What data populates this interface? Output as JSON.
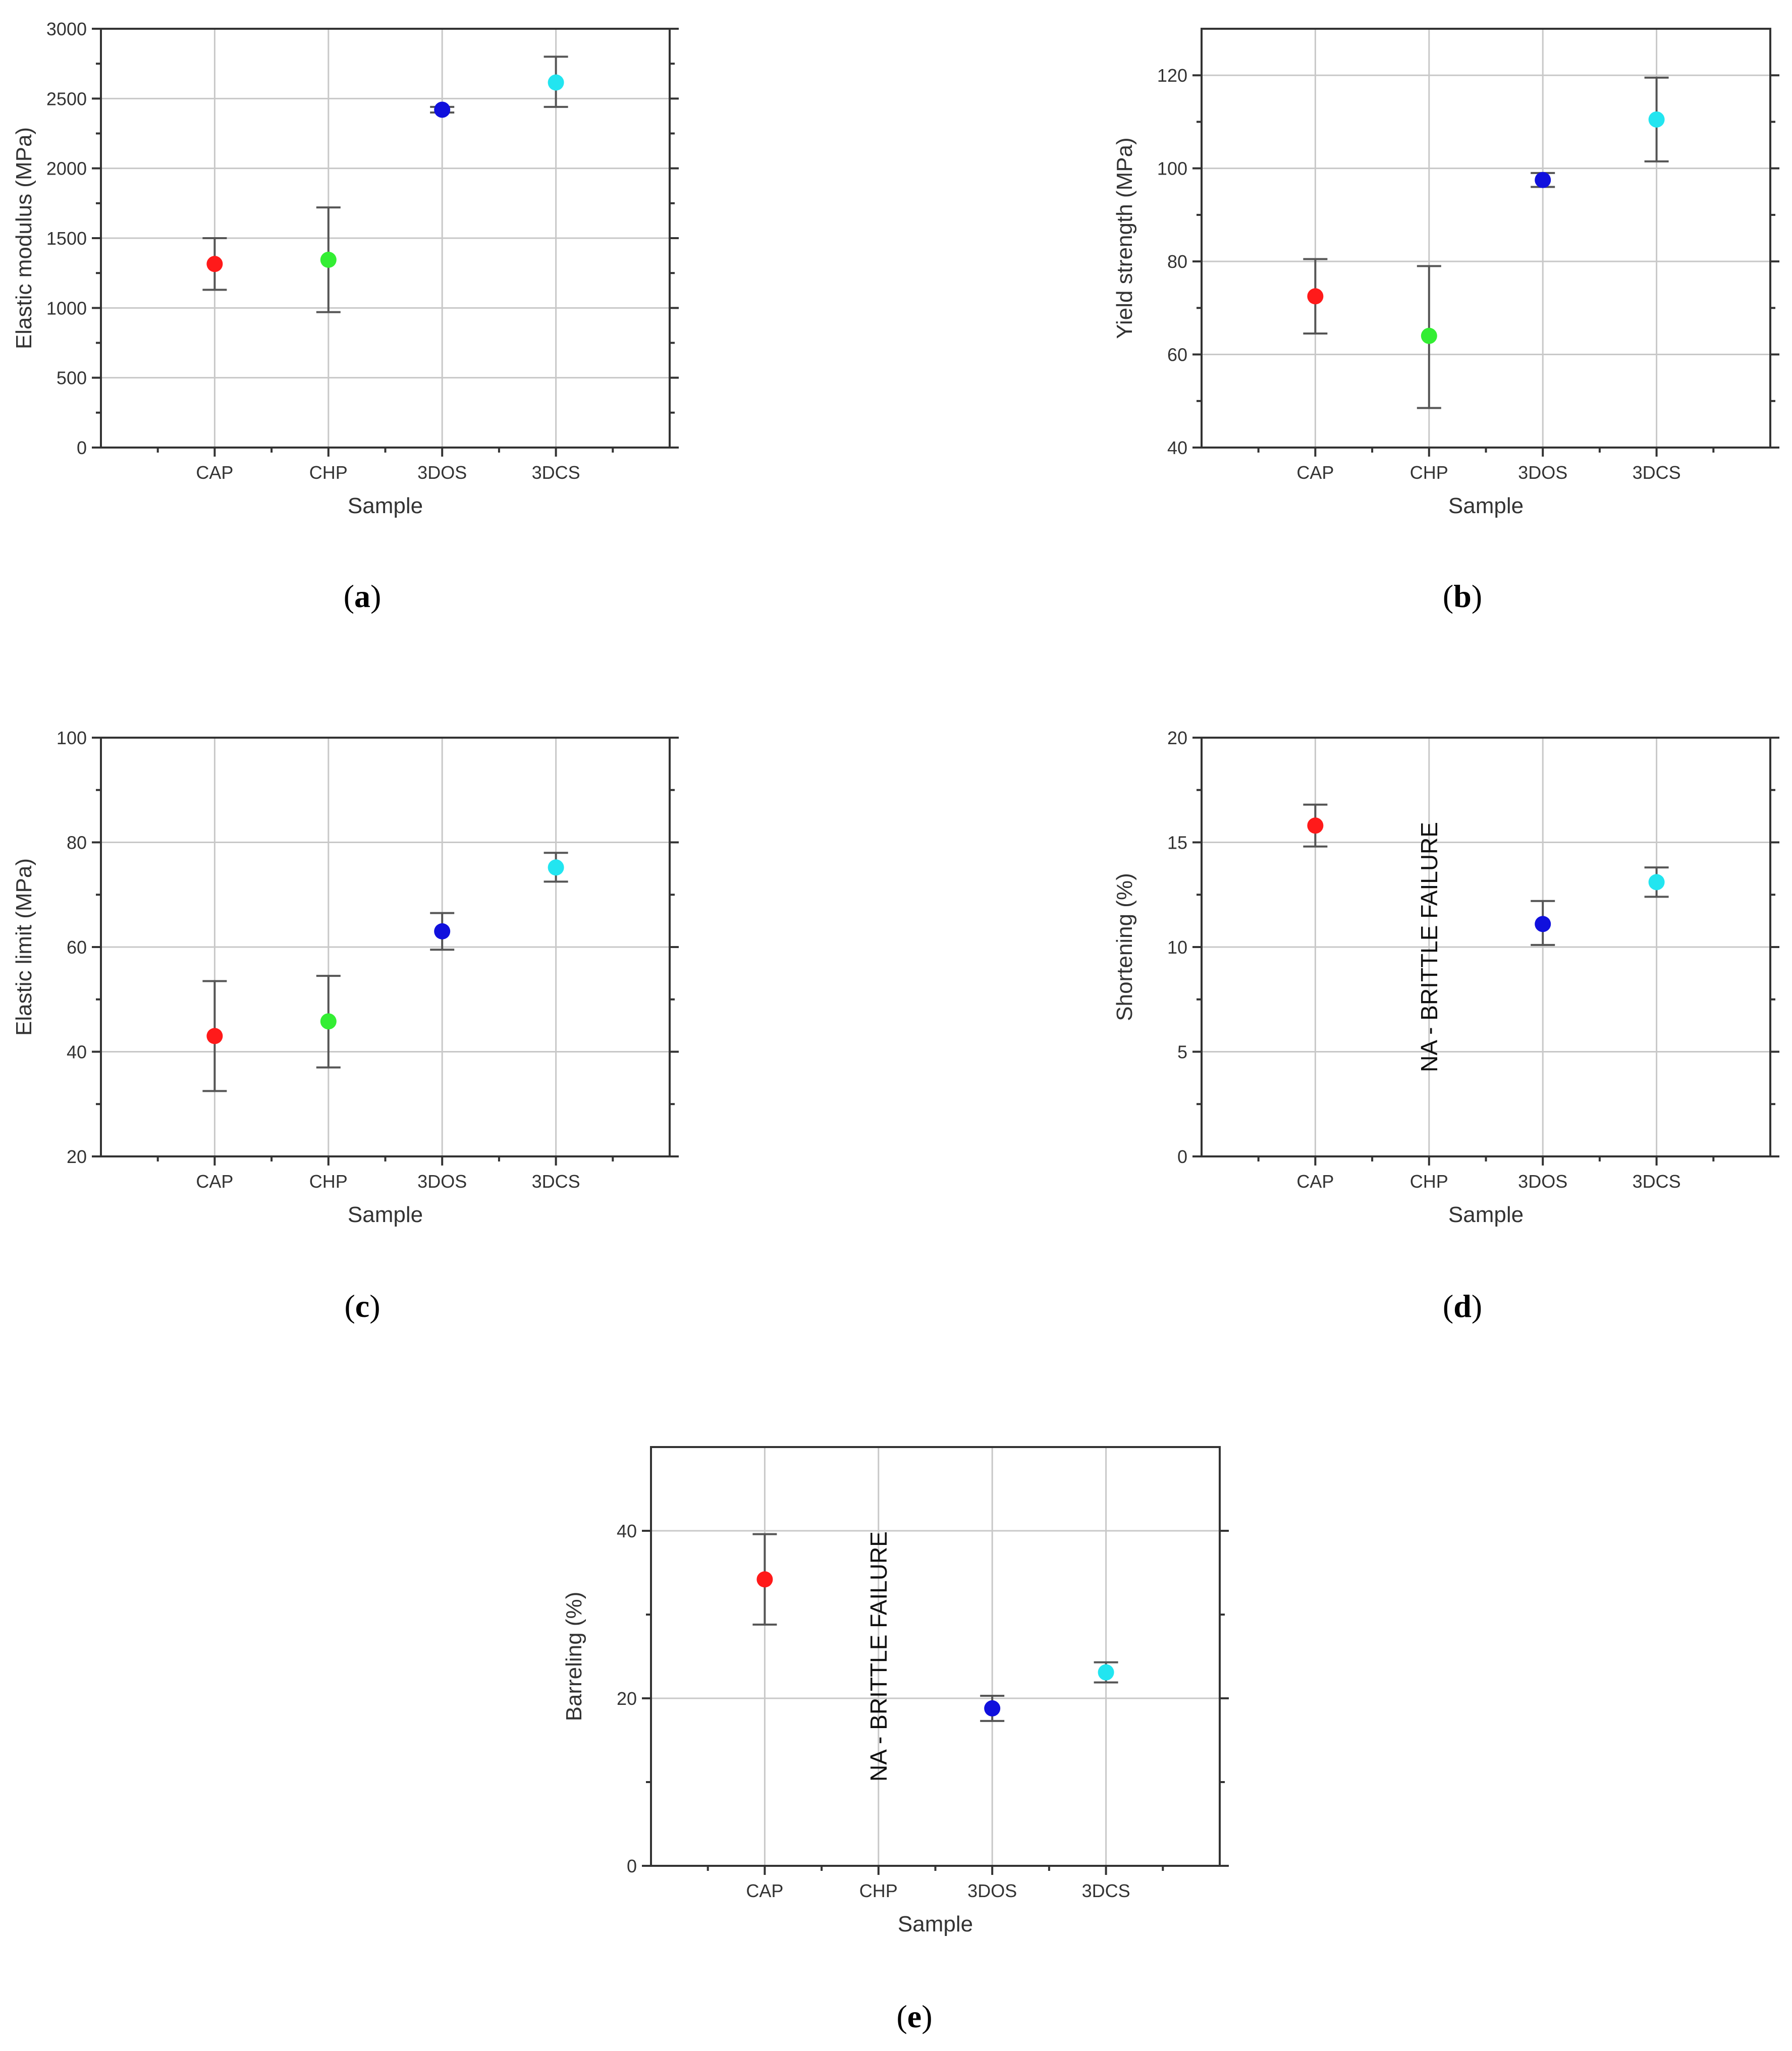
{
  "chart_data": [
    {
      "panel": "a",
      "type": "scatter",
      "xlabel": "Sample",
      "ylabel": "Elastic modulus (MPa)",
      "categories": [
        "CAP",
        "CHP",
        "3DOS",
        "3DCS"
      ],
      "values": [
        1315,
        1345,
        2420,
        2615
      ],
      "error_low": [
        1130,
        970,
        2400,
        2440
      ],
      "error_high": [
        1500,
        1720,
        2440,
        2800
      ],
      "colors": [
        "#ff1a1a",
        "#33ee33",
        "#1010dd",
        "#22e5f0"
      ],
      "ylim": [
        0,
        3000
      ],
      "yticks": [
        "0",
        "500",
        "1000",
        "1500",
        "2000",
        "2500",
        "3000"
      ],
      "grid": true,
      "annotation": ""
    },
    {
      "panel": "b",
      "type": "scatter",
      "xlabel": "Sample",
      "ylabel": "Yield strength (MPa)",
      "categories": [
        "CAP",
        "CHP",
        "3DOS",
        "3DCS"
      ],
      "values": [
        72.5,
        64,
        97.5,
        110.5
      ],
      "error_low": [
        64.5,
        48.5,
        96,
        101.5
      ],
      "error_high": [
        80.5,
        79,
        99,
        119.5
      ],
      "colors": [
        "#ff1a1a",
        "#33ee33",
        "#1010dd",
        "#22e5f0"
      ],
      "ylim": [
        40,
        130
      ],
      "yticks": [
        "40",
        "60",
        "80",
        "100",
        "120"
      ],
      "grid": true,
      "annotation": ""
    },
    {
      "panel": "c",
      "type": "scatter",
      "xlabel": "Sample",
      "ylabel": "Elastic limit (MPa)",
      "categories": [
        "CAP",
        "CHP",
        "3DOS",
        "3DCS"
      ],
      "values": [
        43,
        45.8,
        63,
        75.2
      ],
      "error_low": [
        32.5,
        37,
        59.5,
        72.5
      ],
      "error_high": [
        53.5,
        54.5,
        66.5,
        78
      ],
      "colors": [
        "#ff1a1a",
        "#33ee33",
        "#1010dd",
        "#22e5f0"
      ],
      "ylim": [
        20,
        100
      ],
      "yticks": [
        "20",
        "40",
        "60",
        "80",
        "100"
      ],
      "grid": true,
      "annotation": ""
    },
    {
      "panel": "d",
      "type": "scatter",
      "xlabel": "Sample",
      "ylabel": "Shortening (%)",
      "categories": [
        "CAP",
        "CHP",
        "3DOS",
        "3DCS"
      ],
      "values": [
        15.8,
        null,
        11.1,
        13.1
      ],
      "error_low": [
        14.8,
        null,
        10.1,
        12.4
      ],
      "error_high": [
        16.8,
        null,
        12.2,
        13.8
      ],
      "colors": [
        "#ff1a1a",
        "#33ee33",
        "#1010dd",
        "#22e5f0"
      ],
      "ylim": [
        0,
        20
      ],
      "yticks": [
        "0",
        "5",
        "10",
        "15",
        "20"
      ],
      "grid": true,
      "annotation": "NA - BRITTLE FAILURE"
    },
    {
      "panel": "e",
      "type": "scatter",
      "xlabel": "Sample",
      "ylabel": "Barreling (%)",
      "categories": [
        "CAP",
        "CHP",
        "3DOS",
        "3DCS"
      ],
      "values": [
        34.2,
        null,
        18.8,
        23.1
      ],
      "error_low": [
        28.8,
        null,
        17.3,
        21.9
      ],
      "error_high": [
        39.6,
        null,
        20.3,
        24.3
      ],
      "colors": [
        "#ff1a1a",
        "#33ee33",
        "#1010dd",
        "#22e5f0"
      ],
      "ylim": [
        0,
        50
      ],
      "yticks": [
        "0",
        "20",
        "40"
      ],
      "grid": true,
      "annotation": "NA - BRITTLE FAILURE"
    }
  ],
  "panel_labels": [
    {
      "open": "(",
      "letter": "a",
      "close": ")"
    },
    {
      "open": "(",
      "letter": "b",
      "close": ")"
    },
    {
      "open": "(",
      "letter": "c",
      "close": ")"
    },
    {
      "open": "(",
      "letter": "d",
      "close": ")"
    },
    {
      "open": "(",
      "letter": "e",
      "close": ")"
    }
  ]
}
